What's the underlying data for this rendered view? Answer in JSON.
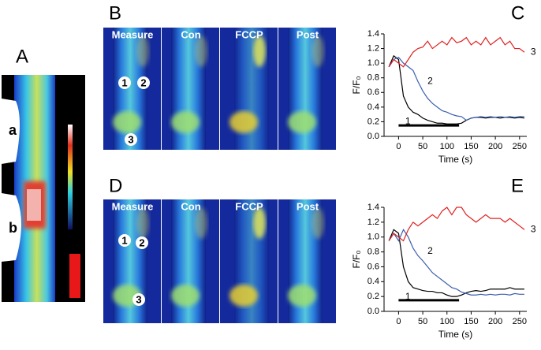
{
  "panels": {
    "A": {
      "label": "A",
      "regions": [
        "a",
        "b"
      ]
    },
    "B": {
      "label": "B",
      "conditions": [
        "Measure",
        "Con",
        "FCCP",
        "Post"
      ],
      "rois": [
        "1",
        "2",
        "3"
      ]
    },
    "D": {
      "label": "D",
      "conditions": [
        "Measure",
        "Con",
        "FCCP",
        "Post"
      ],
      "rois": [
        "1",
        "2",
        "3"
      ]
    }
  },
  "chart_data": [
    {
      "type": "line",
      "panel": "C",
      "xlabel": "Time (s)",
      "ylabel": "F/F₀",
      "x": [
        -20,
        -10,
        0,
        10,
        20,
        30,
        40,
        50,
        60,
        70,
        80,
        90,
        100,
        110,
        120,
        130,
        140,
        150,
        160,
        170,
        180,
        190,
        200,
        210,
        220,
        230,
        240,
        250,
        260
      ],
      "series": [
        {
          "name": "1",
          "color": "#000000",
          "values": [
            0.95,
            1.1,
            1.05,
            0.55,
            0.4,
            0.33,
            0.3,
            0.25,
            0.22,
            0.2,
            0.18,
            0.18,
            0.17,
            0.17,
            0.17,
            0.18,
            0.22,
            0.25,
            0.26,
            0.26,
            0.25,
            0.26,
            0.26,
            0.25,
            0.26,
            0.26,
            0.25,
            0.26,
            0.25
          ]
        },
        {
          "name": "2",
          "color": "#3b5fb0",
          "values": [
            0.95,
            1.05,
            1.08,
            1.0,
            0.95,
            0.9,
            0.75,
            0.62,
            0.52,
            0.45,
            0.4,
            0.35,
            0.33,
            0.3,
            0.28,
            0.27,
            0.22,
            0.25,
            0.26,
            0.27,
            0.26,
            0.27,
            0.26,
            0.27,
            0.26,
            0.27,
            0.26,
            0.27,
            0.27
          ]
        },
        {
          "name": "3",
          "color": "#e02020",
          "values": [
            0.95,
            1.05,
            1.0,
            0.95,
            1.05,
            1.15,
            1.2,
            1.22,
            1.3,
            1.2,
            1.25,
            1.3,
            1.25,
            1.35,
            1.28,
            1.3,
            1.35,
            1.25,
            1.3,
            1.25,
            1.35,
            1.25,
            1.3,
            1.35,
            1.25,
            1.3,
            1.2,
            1.2,
            1.15
          ]
        }
      ],
      "annotation_bar": {
        "x": [
          0,
          125
        ],
        "y": 0.15
      },
      "xlim": [
        -30,
        265
      ],
      "xticks": [
        0,
        50,
        100,
        150,
        200,
        250
      ],
      "ylim": [
        0,
        1.4
      ],
      "yticks": [
        {
          "value": 0,
          "label": "0.0"
        },
        0.2,
        0.4,
        0.6,
        0.8,
        {
          "value": 1,
          "label": "1.0"
        },
        1.2,
        1.4
      ]
    },
    {
      "type": "line",
      "panel": "E",
      "xlabel": "Time (s)",
      "ylabel": "F/F₀",
      "x": [
        -20,
        -10,
        0,
        10,
        20,
        30,
        40,
        50,
        60,
        70,
        80,
        90,
        100,
        110,
        120,
        130,
        140,
        150,
        160,
        170,
        180,
        190,
        200,
        210,
        220,
        230,
        240,
        250,
        260
      ],
      "series": [
        {
          "name": "1",
          "color": "#000000",
          "values": [
            0.95,
            1.1,
            1.05,
            0.6,
            0.4,
            0.32,
            0.3,
            0.28,
            0.27,
            0.27,
            0.25,
            0.25,
            0.22,
            0.2,
            0.2,
            0.22,
            0.25,
            0.27,
            0.28,
            0.27,
            0.28,
            0.3,
            0.3,
            0.3,
            0.3,
            0.32,
            0.3,
            0.3,
            0.3
          ]
        },
        {
          "name": "2",
          "color": "#3b5fb0",
          "values": [
            0.95,
            1.05,
            0.95,
            1.1,
            1.0,
            0.85,
            0.75,
            0.68,
            0.6,
            0.52,
            0.47,
            0.42,
            0.37,
            0.32,
            0.3,
            0.26,
            0.24,
            0.22,
            0.22,
            0.23,
            0.22,
            0.23,
            0.22,
            0.23,
            0.23,
            0.22,
            0.24,
            0.23,
            0.23
          ]
        },
        {
          "name": "3",
          "color": "#e02020",
          "values": [
            0.95,
            1.05,
            1.0,
            0.95,
            1.1,
            1.2,
            1.15,
            1.2,
            1.25,
            1.3,
            1.25,
            1.35,
            1.4,
            1.3,
            1.4,
            1.4,
            1.3,
            1.25,
            1.2,
            1.25,
            1.3,
            1.25,
            1.25,
            1.25,
            1.2,
            1.25,
            1.2,
            1.15,
            1.1
          ]
        }
      ],
      "annotation_bar": {
        "x": [
          0,
          125
        ],
        "y": 0.15
      },
      "xlim": [
        -30,
        265
      ],
      "xticks": [
        0,
        50,
        100,
        150,
        200,
        250
      ],
      "ylim": [
        0,
        1.4
      ],
      "yticks": [
        {
          "value": 0,
          "label": "0.0"
        },
        0.2,
        0.4,
        0.6,
        0.8,
        {
          "value": 1,
          "label": "1.0"
        },
        1.2,
        1.4
      ]
    }
  ]
}
